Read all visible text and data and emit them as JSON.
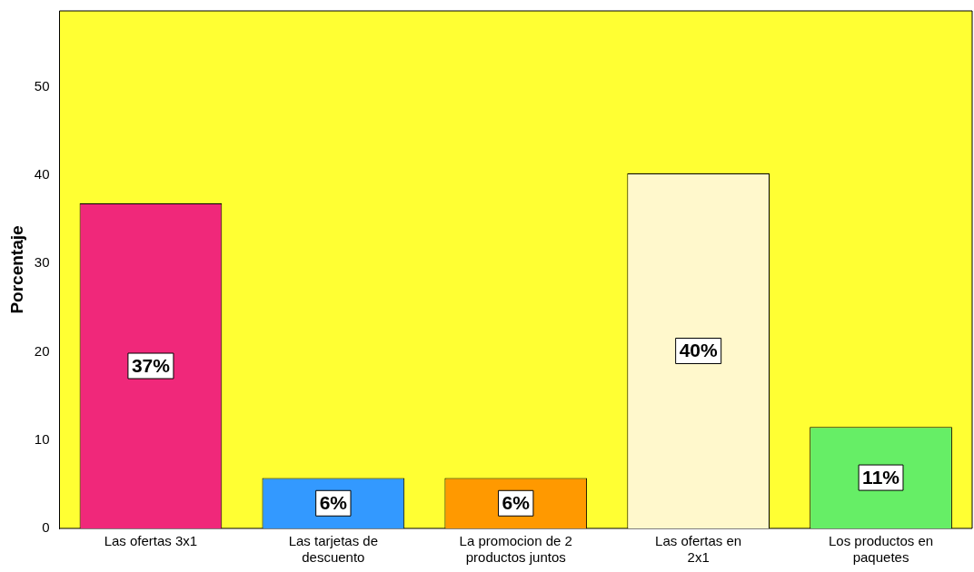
{
  "chart_data": {
    "type": "bar",
    "ylabel": "Porcentaje",
    "categories": [
      "Las ofertas 3x1",
      "Las tarjetas de descuento",
      "La promocion de 2 productos juntos",
      "Las ofertas en 2x1",
      "Los productos en paquetes"
    ],
    "values": [
      36.8,
      5.7,
      5.7,
      40.2,
      11.5
    ],
    "colors": [
      "#f0287a",
      "#3399ff",
      "#ff9900",
      "#fff8cc",
      "#66ee66"
    ],
    "value_labels": [
      "37%",
      "6%",
      "6%",
      "40%",
      "11%"
    ],
    "ylim": [
      0,
      58.6
    ],
    "yticks": [
      0,
      10,
      20,
      30,
      40,
      50
    ],
    "grid": false,
    "legend": false
  }
}
